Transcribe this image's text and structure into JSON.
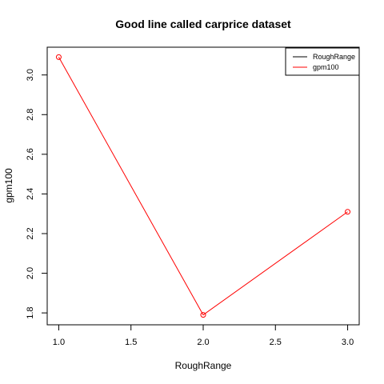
{
  "chart_data": {
    "type": "line",
    "title": "Good line called carprice dataset",
    "xlabel": "RoughRange",
    "ylabel": "gpm100",
    "x": [
      1,
      2,
      3
    ],
    "xlim": [
      0.92,
      3.08
    ],
    "ylim": [
      1.74,
      3.14
    ],
    "xticks": [
      1.0,
      1.5,
      2.0,
      2.5,
      3.0
    ],
    "xtick_labels": [
      "1.0",
      "1.5",
      "2.0",
      "2.5",
      "3.0"
    ],
    "yticks": [
      1.8,
      2.0,
      2.2,
      2.4,
      2.6,
      2.8,
      3.0
    ],
    "ytick_labels": [
      "1.8",
      "2.0",
      "2.2",
      "2.4",
      "2.6",
      "2.8",
      "3.0"
    ],
    "series": [
      {
        "name": "gpm100",
        "values": [
          3.09,
          1.79,
          2.31
        ],
        "color": "#ff0000",
        "marker": "open-circle"
      }
    ],
    "legend": {
      "placement": "top-right",
      "entries": [
        {
          "label": "RoughRange",
          "color": "#000000"
        },
        {
          "label": "gpm100",
          "color": "#ff0000"
        }
      ]
    },
    "grid": false
  }
}
